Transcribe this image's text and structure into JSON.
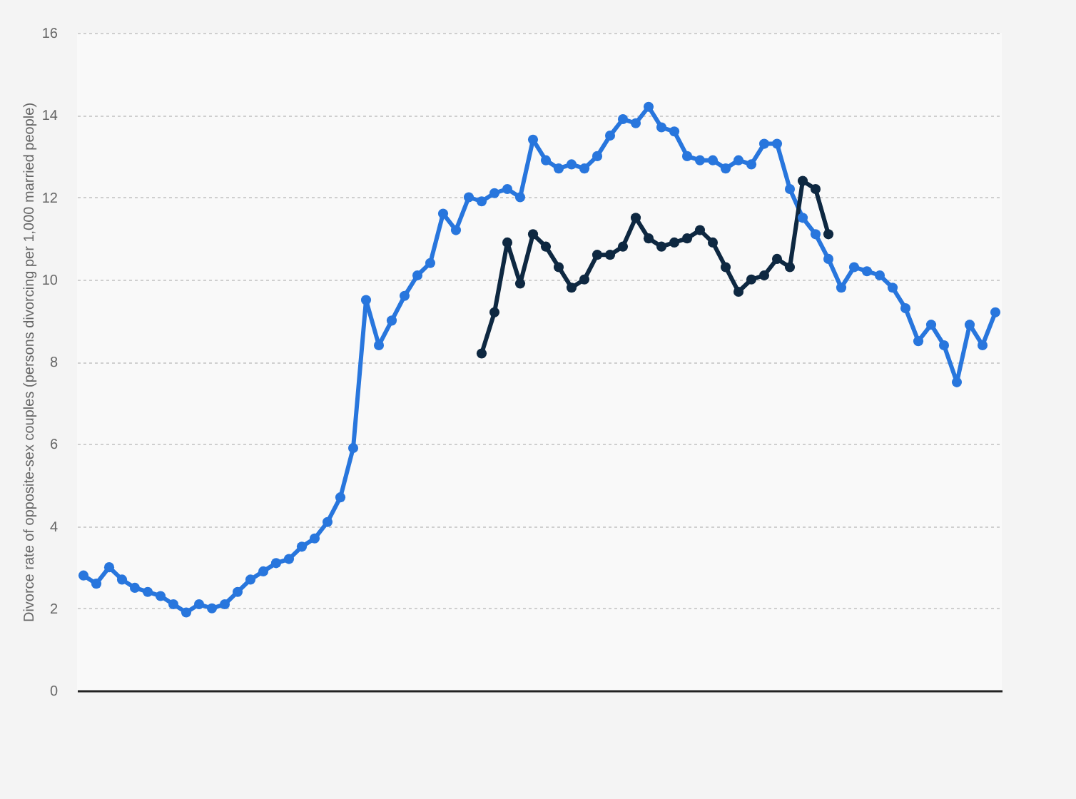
{
  "chart_data": {
    "type": "line",
    "ylabel": "Divorce rate of opposite-sex couples (persons divorcing per 1,000 married people)",
    "categories": [
      null,
      null,
      null,
      null,
      null,
      null,
      null,
      null,
      null,
      null,
      null,
      null,
      null,
      null,
      null,
      null,
      null,
      null,
      null,
      null,
      null,
      null,
      null,
      null,
      null,
      null,
      null,
      null,
      null,
      null,
      null,
      null,
      null,
      null,
      null,
      null,
      null,
      null,
      null,
      null,
      null,
      null,
      null,
      null,
      null,
      null,
      null,
      null,
      null,
      null,
      null,
      null,
      null,
      null,
      null,
      null,
      null,
      null,
      null,
      null,
      null,
      null,
      null,
      null,
      null,
      null,
      null,
      null,
      null,
      null,
      null,
      null
    ],
    "series": [
      {
        "color": "#2876dd",
        "values": [
          2.8,
          2.6,
          3.0,
          2.7,
          2.5,
          2.4,
          2.3,
          2.1,
          1.9,
          2.1,
          2.0,
          2.1,
          2.4,
          2.7,
          2.9,
          3.1,
          3.2,
          3.5,
          3.7,
          4.1,
          4.7,
          5.9,
          9.5,
          8.4,
          9.0,
          9.6,
          10.1,
          10.4,
          11.6,
          11.2,
          12.0,
          11.9,
          12.1,
          12.2,
          12.0,
          13.4,
          12.9,
          12.7,
          12.8,
          12.7,
          13.0,
          13.5,
          13.9,
          13.8,
          14.2,
          13.7,
          13.6,
          13.0,
          12.9,
          12.9,
          12.7,
          12.9,
          12.8,
          13.3,
          13.3,
          12.2,
          11.5,
          11.1,
          10.5,
          9.8,
          10.3,
          10.2,
          10.1,
          9.8,
          9.3,
          8.5,
          8.9,
          8.4,
          7.5,
          8.9,
          8.4,
          9.2
        ]
      },
      {
        "color": "#0e2841",
        "values": [
          null,
          null,
          null,
          null,
          null,
          null,
          null,
          null,
          null,
          null,
          null,
          null,
          null,
          null,
          null,
          null,
          null,
          null,
          null,
          null,
          null,
          null,
          null,
          null,
          null,
          null,
          null,
          null,
          null,
          null,
          null,
          8.2,
          9.2,
          10.9,
          9.9,
          11.1,
          10.8,
          10.3,
          9.8,
          10.0,
          10.6,
          10.6,
          10.8,
          11.5,
          11.0,
          10.8,
          10.9,
          11.0,
          11.2,
          10.9,
          10.3,
          9.7,
          10.0,
          10.1,
          10.5,
          10.3,
          12.4,
          12.2,
          11.1,
          null,
          null,
          null,
          null,
          null,
          null,
          null,
          null,
          null,
          null,
          null,
          null,
          null
        ]
      }
    ],
    "ylim": [
      0,
      16
    ],
    "yticks": [
      0,
      2,
      4,
      6,
      8,
      10,
      12,
      14,
      16
    ],
    "grid": "y",
    "tick_labels": "y",
    "marker": "circle",
    "line_style": "solid"
  }
}
